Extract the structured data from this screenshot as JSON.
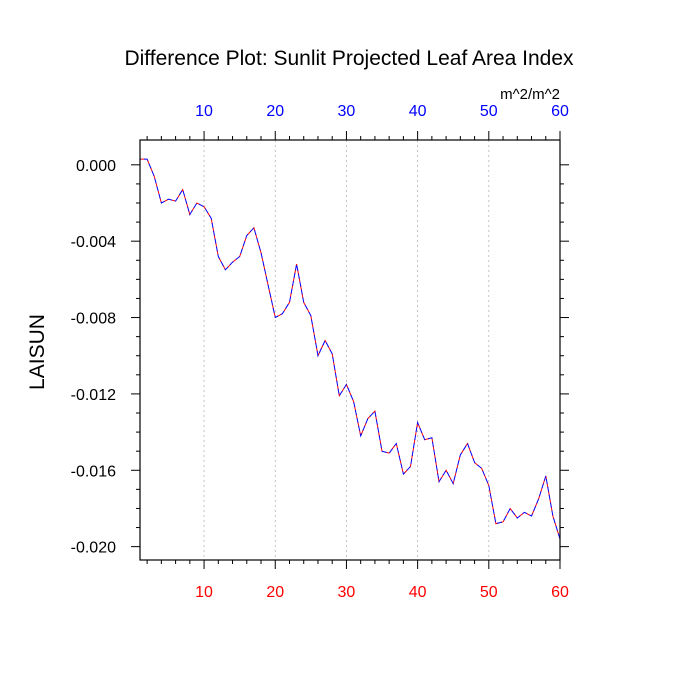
{
  "chart_data": {
    "type": "line",
    "title": "Difference Plot: Sunlit Projected Leaf Area Index",
    "units": "m^2/m^2",
    "xlabel": "",
    "ylabel": "LAISUN",
    "xlim": [
      1,
      60
    ],
    "ylim": [
      -0.0207,
      0.0013
    ],
    "x_ticks": [
      10,
      20,
      30,
      40,
      50,
      60
    ],
    "x_tick_labels": [
      "10",
      "20",
      "30",
      "40",
      "50",
      "60"
    ],
    "y_ticks": [
      0.0,
      -0.004,
      -0.008,
      -0.012,
      -0.016,
      -0.02
    ],
    "y_tick_labels": [
      "0.000",
      "-0.004",
      "-0.008",
      "-0.012",
      "-0.016",
      "-0.020"
    ],
    "bottom_tick_color": "#ff0000",
    "top_tick_color": "#0000ff",
    "grid": "vertical dotted at x ticks",
    "series": [
      {
        "color_a": "#ff0000",
        "color_b": "#0000ff",
        "style": "dashed overlay",
        "x": [
          1,
          2,
          3,
          4,
          5,
          6,
          7,
          8,
          9,
          10,
          11,
          12,
          13,
          14,
          15,
          16,
          17,
          18,
          19,
          20,
          21,
          22,
          23,
          24,
          25,
          26,
          27,
          28,
          29,
          30,
          31,
          32,
          33,
          34,
          35,
          36,
          37,
          38,
          39,
          40,
          41,
          42,
          43,
          44,
          45,
          46,
          47,
          48,
          49,
          50,
          51,
          52,
          53,
          54,
          55,
          56,
          57,
          58,
          59,
          60
        ],
        "values": [
          0.0003,
          0.0003,
          -0.0006,
          -0.002,
          -0.0018,
          -0.0019,
          -0.0013,
          -0.0026,
          -0.002,
          -0.0022,
          -0.0028,
          -0.0048,
          -0.0055,
          -0.0051,
          -0.0048,
          -0.0037,
          -0.0033,
          -0.0046,
          -0.0063,
          -0.008,
          -0.0078,
          -0.0072,
          -0.0052,
          -0.0072,
          -0.0079,
          -0.01,
          -0.0092,
          -0.0099,
          -0.0121,
          -0.0115,
          -0.0124,
          -0.0142,
          -0.0133,
          -0.0129,
          -0.015,
          -0.0151,
          -0.0146,
          -0.0162,
          -0.0158,
          -0.0135,
          -0.0144,
          -0.0143,
          -0.0166,
          -0.016,
          -0.0167,
          -0.0152,
          -0.0146,
          -0.0156,
          -0.0159,
          -0.0168,
          -0.0188,
          -0.0187,
          -0.018,
          -0.0185,
          -0.0182,
          -0.0184,
          -0.0175,
          -0.0163,
          -0.0184,
          -0.0196
        ]
      }
    ]
  }
}
